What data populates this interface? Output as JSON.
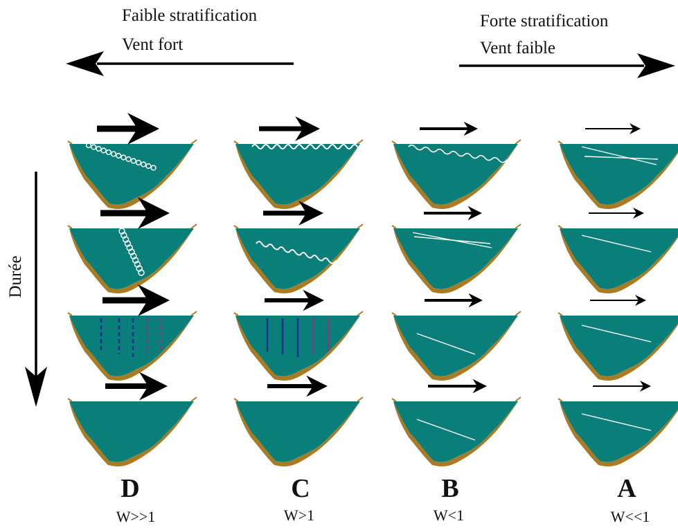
{
  "header": {
    "left": {
      "line1": "Faible stratification",
      "line2": "Vent fort"
    },
    "right": {
      "line1": "Forte stratification",
      "line2": "Vent faible"
    }
  },
  "axis": {
    "time_label": "Durée"
  },
  "columns": [
    {
      "letter": "D",
      "w_label": "W>>1"
    },
    {
      "letter": "C",
      "w_label": "W>1"
    },
    {
      "letter": "B",
      "w_label": "W<1"
    },
    {
      "letter": "A",
      "w_label": "W<<1"
    }
  ],
  "colors": {
    "water": "#0a7f7a",
    "sediment": "#a87b24",
    "mixing": "#ffffff",
    "column_blue": "#1b2e8e",
    "column_purple": "#7a3f7a"
  }
}
